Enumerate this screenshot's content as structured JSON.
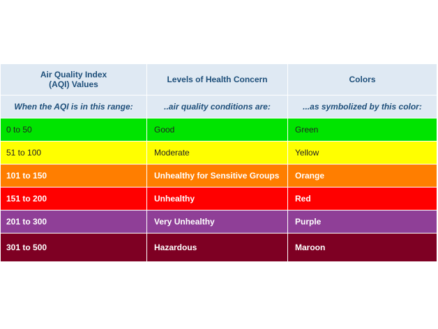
{
  "table": {
    "headers": {
      "range_line1": "Air Quality Index",
      "range_line2": "(AQI) Values",
      "levels": "Levels of Health Concern",
      "colors": "Colors"
    },
    "subheaders": {
      "range": "When the AQI is in this range:",
      "levels": "..air quality conditions are:",
      "colors": "...as symbolized by this color:"
    },
    "rows": [
      {
        "range": "0 to 50",
        "level": "Good",
        "color_name": "Green",
        "bg": "#00e400",
        "text_color": "#222222"
      },
      {
        "range": "51 to 100",
        "level": "Moderate",
        "color_name": "Yellow",
        "bg": "#ffff00",
        "text_color": "#222222"
      },
      {
        "range": "101 to 150",
        "level": "Unhealthy for Sensitive Groups",
        "color_name": "Orange",
        "bg": "#ff7e00",
        "text_color": "#ffffff"
      },
      {
        "range": "151 to 200",
        "level": "Unhealthy",
        "color_name": "Red",
        "bg": "#ff0000",
        "text_color": "#ffffff"
      },
      {
        "range": "201 to 300",
        "level": "Very Unhealthy",
        "color_name": "Purple",
        "bg": "#8f3f97",
        "text_color": "#ffffff"
      },
      {
        "range": "301 to 500",
        "level": "Hazardous",
        "color_name": "Maroon",
        "bg": "#7e0023",
        "text_color": "#ffffff"
      }
    ]
  }
}
